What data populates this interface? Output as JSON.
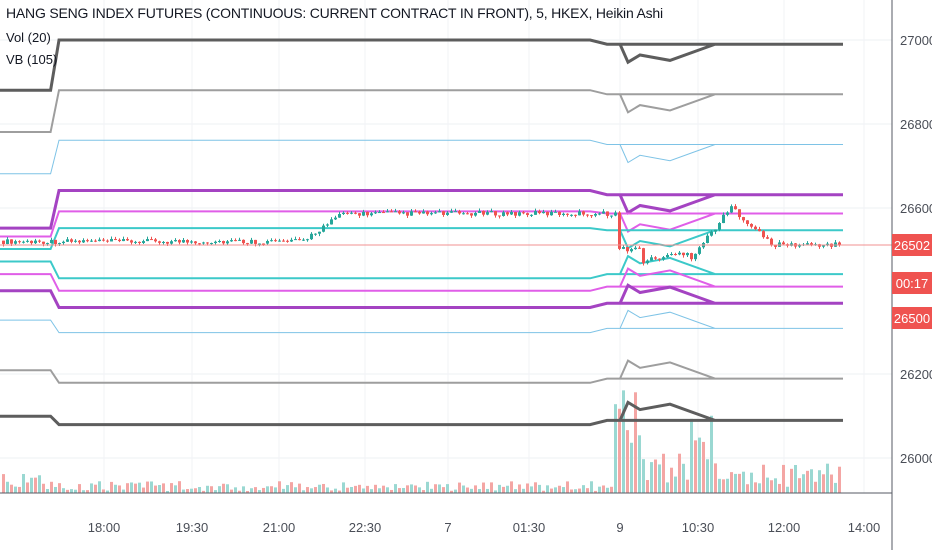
{
  "legend": {
    "title": "HANG SENG INDEX FUTURES (CONTINUOUS: CURRENT CONTRACT IN FRONT), 5, HKEX, Heikin Ashi",
    "vol": "Vol (20)",
    "vb": "VB (105)"
  },
  "price_tags": {
    "last": "26502",
    "countdown": "00:17",
    "level": "26500"
  },
  "colors": {
    "up": "#26a69a",
    "down": "#ef5350",
    "teal_line": "#3cc9c9",
    "magenta_line": "#e05ee8",
    "purple_line": "#a443c2",
    "blue_line": "#7ec3e6",
    "gray_line": "#9e9e9e",
    "dark_line": "#5d5d5d"
  },
  "chart_data": {
    "type": "candlestick",
    "title": "HANG SENG INDEX FUTURES (CONTINUOUS: CURRENT CONTRACT IN FRONT), 5, HKEX, Heikin Ashi",
    "y_ticks": [
      "27000",
      "26800",
      "26600",
      "26200",
      "26000"
    ],
    "x_ticks": [
      "18:00",
      "19:30",
      "21:00",
      "22:30",
      "7",
      "01:30",
      "9",
      "10:30",
      "12:00",
      "14:00"
    ],
    "y_range": [
      25900,
      27100
    ],
    "last_price": 26502,
    "bands": [
      {
        "style": "dark",
        "levels": [
          {
            "from": 0,
            "to": 0.06,
            "v": 26880
          },
          {
            "from": 0.07,
            "to": 0.7,
            "v": 27000
          },
          {
            "from": 0.72,
            "to": 0.98,
            "v": 26990
          }
        ]
      },
      {
        "style": "gray",
        "levels": [
          {
            "from": 0,
            "to": 0.06,
            "v": 26780
          },
          {
            "from": 0.07,
            "to": 0.7,
            "v": 26880
          },
          {
            "from": 0.72,
            "to": 0.98,
            "v": 26870
          }
        ]
      },
      {
        "style": "blue",
        "levels": [
          {
            "from": 0,
            "to": 0.06,
            "v": 26680
          },
          {
            "from": 0.07,
            "to": 0.7,
            "v": 26760
          },
          {
            "from": 0.72,
            "to": 0.98,
            "v": 26750
          }
        ]
      },
      {
        "style": "purple",
        "levels": [
          {
            "from": 0,
            "to": 0.06,
            "v": 26550
          },
          {
            "from": 0.07,
            "to": 0.7,
            "v": 26640
          },
          {
            "from": 0.72,
            "to": 0.98,
            "v": 26630
          }
        ]
      },
      {
        "style": "magenta",
        "levels": [
          {
            "from": 0,
            "to": 0.06,
            "v": 26530
          },
          {
            "from": 0.07,
            "to": 0.7,
            "v": 26590
          },
          {
            "from": 0.72,
            "to": 0.98,
            "v": 26585
          }
        ]
      },
      {
        "style": "teal",
        "levels": [
          {
            "from": 0,
            "to": 0.06,
            "v": 26500
          },
          {
            "from": 0.07,
            "to": 0.7,
            "v": 26550
          },
          {
            "from": 0.72,
            "to": 0.98,
            "v": 26545
          }
        ]
      },
      {
        "style": "teal",
        "levels": [
          {
            "from": 0,
            "to": 0.06,
            "v": 26470
          },
          {
            "from": 0.07,
            "to": 0.7,
            "v": 26430
          },
          {
            "from": 0.72,
            "to": 0.98,
            "v": 26440
          }
        ]
      },
      {
        "style": "magenta",
        "levels": [
          {
            "from": 0,
            "to": 0.06,
            "v": 26440
          },
          {
            "from": 0.07,
            "to": 0.7,
            "v": 26400
          },
          {
            "from": 0.72,
            "to": 0.98,
            "v": 26410
          }
        ]
      },
      {
        "style": "purple",
        "levels": [
          {
            "from": 0,
            "to": 0.06,
            "v": 26400
          },
          {
            "from": 0.07,
            "to": 0.7,
            "v": 26360
          },
          {
            "from": 0.72,
            "to": 0.98,
            "v": 26370
          }
        ]
      },
      {
        "style": "blue",
        "levels": [
          {
            "from": 0,
            "to": 0.06,
            "v": 26330
          },
          {
            "from": 0.07,
            "to": 0.7,
            "v": 26300
          },
          {
            "from": 0.72,
            "to": 0.98,
            "v": 26310
          }
        ]
      },
      {
        "style": "gray",
        "levels": [
          {
            "from": 0,
            "to": 0.06,
            "v": 26210
          },
          {
            "from": 0.07,
            "to": 0.7,
            "v": 26180
          },
          {
            "from": 0.72,
            "to": 0.98,
            "v": 26190
          }
        ]
      },
      {
        "style": "dark",
        "levels": [
          {
            "from": 0,
            "to": 0.06,
            "v": 26100
          },
          {
            "from": 0.07,
            "to": 0.7,
            "v": 26080
          },
          {
            "from": 0.72,
            "to": 0.98,
            "v": 26090
          }
        ]
      }
    ]
  }
}
